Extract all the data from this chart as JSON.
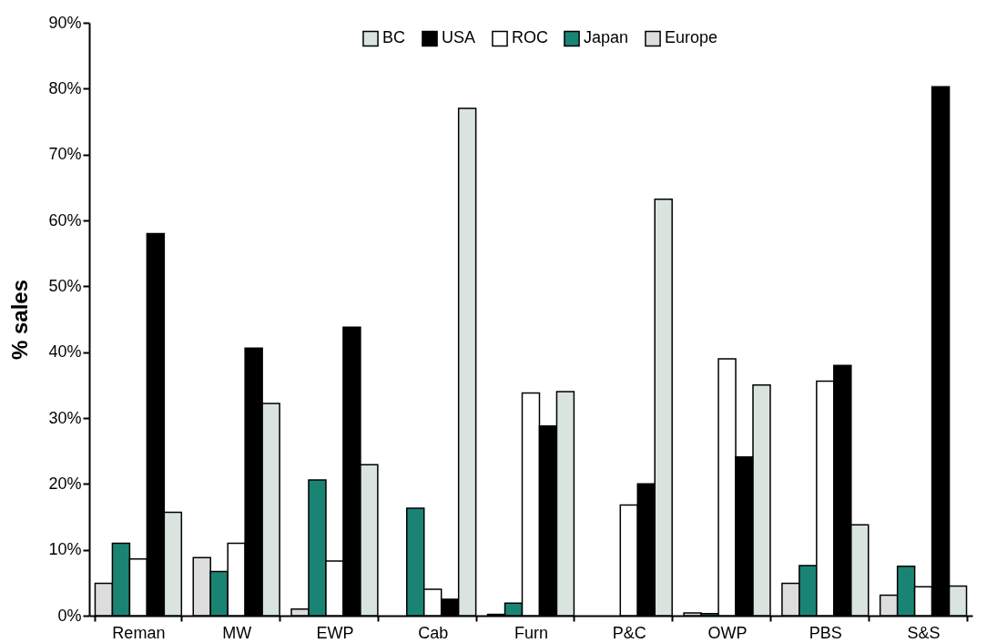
{
  "chart_data": {
    "type": "bar",
    "ylabel": "% sales",
    "categories": [
      "Reman",
      "MW",
      "EWP",
      "Cab",
      "Furn",
      "P&C",
      "OWP",
      "PBS",
      "S&S"
    ],
    "series": [
      {
        "name": "Europe",
        "color": "#dddddd",
        "values": [
          4.9,
          8.8,
          1,
          null,
          0.2,
          null,
          0.4,
          4.9,
          3.1
        ]
      },
      {
        "name": "Japan",
        "color": "#1a8474",
        "values": [
          11,
          6.7,
          20.6,
          16.3,
          1.9,
          null,
          0.3,
          7.6,
          7.5
        ]
      },
      {
        "name": "ROC",
        "color": "#ffffff",
        "values": [
          8.6,
          11,
          8.3,
          4,
          33.8,
          16.8,
          39,
          35.6,
          4.4
        ]
      },
      {
        "name": "USA",
        "color": "#000000",
        "values": [
          58,
          40.6,
          43.8,
          2.5,
          28.8,
          20,
          24.1,
          38,
          80.3
        ]
      },
      {
        "name": "BC",
        "color": "#d9e4df",
        "values": [
          15.7,
          32.2,
          22.9,
          77,
          34,
          63.2,
          35,
          13.8,
          4.5
        ]
      }
    ],
    "ylim": [
      0,
      90
    ],
    "yticks": [
      {
        "value": 0,
        "label": "0%"
      },
      {
        "value": 10,
        "label": "10%"
      },
      {
        "value": 20,
        "label": "20%"
      },
      {
        "value": 30,
        "label": "30%"
      },
      {
        "value": 40,
        "label": "40%"
      },
      {
        "value": 50,
        "label": "50%"
      },
      {
        "value": 60,
        "label": "60%"
      },
      {
        "value": 70,
        "label": "70%"
      },
      {
        "value": 80,
        "label": "80%"
      },
      {
        "value": 90,
        "label": "90%"
      }
    ],
    "grid": false,
    "legend": "top"
  }
}
